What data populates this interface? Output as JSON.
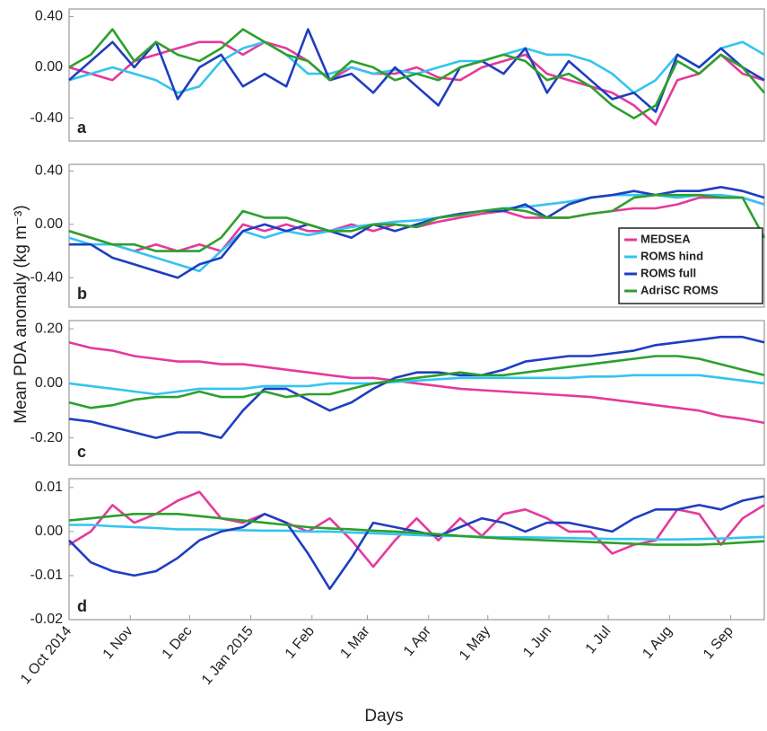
{
  "chart_data": [
    {
      "type": "line",
      "label": "a",
      "x": [
        0,
        11,
        22,
        33,
        44,
        55,
        66,
        77,
        88,
        99,
        110,
        121,
        132,
        143,
        154,
        165,
        176,
        187,
        198,
        209,
        220,
        231,
        242,
        253,
        264,
        275,
        286,
        297,
        308,
        319,
        330,
        341,
        352
      ],
      "xlim": [
        0,
        352
      ],
      "ylim": [
        -0.58,
        0.46
      ],
      "yticks": [
        {
          "value": 0.4,
          "label": "0.40"
        },
        {
          "value": 0,
          "label": "0.00"
        },
        {
          "value": -0.4,
          "label": "-0.40"
        }
      ],
      "series": [
        {
          "color": "#e6399b",
          "values": [
            0,
            -0.05,
            -0.1,
            0.05,
            0.1,
            0.15,
            0.2,
            0.2,
            0.1,
            0.2,
            0.15,
            0.05,
            -0.1,
            0,
            -0.05,
            -0.05,
            0,
            -0.08,
            -0.1,
            0,
            0.05,
            0.1,
            -0.05,
            -0.1,
            -0.15,
            -0.2,
            -0.3,
            -0.45,
            -0.1,
            -0.05,
            0.1,
            -0.05,
            -0.1
          ]
        },
        {
          "color": "#33c4f0",
          "values": [
            -0.1,
            -0.05,
            0,
            -0.05,
            -0.1,
            -0.2,
            -0.15,
            0.05,
            0.15,
            0.2,
            0.1,
            -0.05,
            -0.05,
            0,
            -0.05,
            -0.02,
            -0.05,
            0,
            0.05,
            0.05,
            0.1,
            0.15,
            0.1,
            0.1,
            0.05,
            -0.05,
            -0.2,
            -0.1,
            0.1,
            0,
            0.15,
            0.2,
            0.1
          ]
        },
        {
          "color": "#1f3ec0",
          "values": [
            -0.1,
            0.05,
            0.2,
            0,
            0.2,
            -0.25,
            0,
            0.1,
            -0.15,
            -0.05,
            -0.15,
            0.3,
            -0.1,
            -0.05,
            -0.2,
            0,
            -0.15,
            -0.3,
            0,
            0.05,
            -0.05,
            0.15,
            -0.2,
            0.05,
            -0.1,
            -0.25,
            -0.2,
            -0.35,
            0.1,
            0,
            0.15,
            0,
            -0.1
          ]
        },
        {
          "color": "#2ca02c",
          "values": [
            0,
            0.1,
            0.3,
            0.05,
            0.2,
            0.1,
            0.05,
            0.15,
            0.3,
            0.2,
            0.1,
            0.05,
            -0.1,
            0.05,
            0,
            -0.1,
            -0.05,
            -0.1,
            0,
            0.05,
            0.1,
            0.05,
            -0.1,
            -0.05,
            -0.15,
            -0.3,
            -0.4,
            -0.3,
            0.05,
            -0.05,
            0.1,
            0,
            -0.2
          ]
        }
      ]
    },
    {
      "type": "line",
      "label": "b",
      "ylabel": "Mean PDA anomaly (kg m⁻³)",
      "legend": "lower right",
      "x": [
        0,
        11,
        22,
        33,
        44,
        55,
        66,
        77,
        88,
        99,
        110,
        121,
        132,
        143,
        154,
        165,
        176,
        187,
        198,
        209,
        220,
        231,
        242,
        253,
        264,
        275,
        286,
        297,
        308,
        319,
        330,
        341,
        352
      ],
      "xlim": [
        0,
        352
      ],
      "ylim": [
        -0.62,
        0.45
      ],
      "yticks": [
        {
          "value": 0.4,
          "label": "0.40"
        },
        {
          "value": 0,
          "label": "0.00"
        },
        {
          "value": -0.4,
          "label": "-0.40"
        }
      ],
      "series": [
        {
          "name": "MEDSEA",
          "color": "#e6399b",
          "values": [
            -0.05,
            -0.1,
            -0.15,
            -0.2,
            -0.15,
            -0.2,
            -0.15,
            -0.2,
            0,
            -0.05,
            0,
            -0.05,
            -0.05,
            0,
            -0.05,
            0,
            -0.02,
            0.02,
            0.05,
            0.08,
            0.1,
            0.05,
            0.05,
            0.05,
            0.08,
            0.1,
            0.12,
            0.12,
            0.15,
            0.2,
            0.2,
            0.2,
            0.15
          ]
        },
        {
          "name": "ROMS hind",
          "color": "#33c4f0",
          "values": [
            -0.1,
            -0.15,
            -0.15,
            -0.2,
            -0.25,
            -0.3,
            -0.35,
            -0.2,
            -0.05,
            -0.1,
            -0.05,
            -0.08,
            -0.05,
            -0.02,
            0,
            0.02,
            0.03,
            0.05,
            0.07,
            0.1,
            0.12,
            0.13,
            0.15,
            0.17,
            0.2,
            0.22,
            0.22,
            0.22,
            0.2,
            0.22,
            0.22,
            0.2,
            0.15
          ]
        },
        {
          "name": "ROMS full",
          "color": "#1f3ec0",
          "values": [
            -0.15,
            -0.15,
            -0.25,
            -0.3,
            -0.35,
            -0.4,
            -0.3,
            -0.25,
            -0.05,
            0,
            -0.05,
            0,
            -0.05,
            -0.1,
            0,
            -0.05,
            0,
            0.05,
            0.08,
            0.1,
            0.1,
            0.15,
            0.05,
            0.15,
            0.2,
            0.22,
            0.25,
            0.22,
            0.25,
            0.25,
            0.28,
            0.25,
            0.2
          ]
        },
        {
          "name": "AdriSC ROMS",
          "color": "#2ca02c",
          "values": [
            -0.05,
            -0.1,
            -0.15,
            -0.15,
            -0.2,
            -0.2,
            -0.2,
            -0.1,
            0.1,
            0.05,
            0.05,
            0,
            -0.05,
            -0.05,
            0,
            0,
            -0.02,
            0.05,
            0.07,
            0.1,
            0.12,
            0.1,
            0.05,
            0.05,
            0.08,
            0.1,
            0.2,
            0.22,
            0.22,
            0.22,
            0.2,
            0.2,
            -0.1
          ]
        }
      ]
    },
    {
      "type": "line",
      "label": "c",
      "x": [
        0,
        11,
        22,
        33,
        44,
        55,
        66,
        77,
        88,
        99,
        110,
        121,
        132,
        143,
        154,
        165,
        176,
        187,
        198,
        209,
        220,
        231,
        242,
        253,
        264,
        275,
        286,
        297,
        308,
        319,
        330,
        341,
        352
      ],
      "xlim": [
        0,
        352
      ],
      "ylim": [
        -0.3,
        0.23
      ],
      "yticks": [
        {
          "value": 0.2,
          "label": "0.20"
        },
        {
          "value": 0,
          "label": "0.00"
        },
        {
          "value": -0.2,
          "label": "-0.20"
        }
      ],
      "series": [
        {
          "color": "#e6399b",
          "values": [
            0.15,
            0.13,
            0.12,
            0.1,
            0.09,
            0.08,
            0.08,
            0.07,
            0.07,
            0.06,
            0.05,
            0.04,
            0.03,
            0.02,
            0.02,
            0.01,
            0,
            -0.01,
            -0.02,
            -0.025,
            -0.03,
            -0.035,
            -0.04,
            -0.045,
            -0.05,
            -0.06,
            -0.07,
            -0.08,
            -0.09,
            -0.1,
            -0.12,
            -0.13,
            -0.145
          ]
        },
        {
          "color": "#33c4f0",
          "values": [
            0,
            -0.01,
            -0.02,
            -0.03,
            -0.04,
            -0.03,
            -0.02,
            -0.02,
            -0.02,
            -0.01,
            -0.01,
            -0.01,
            0,
            0,
            0,
            0.005,
            0.01,
            0.015,
            0.02,
            0.02,
            0.02,
            0.02,
            0.02,
            0.02,
            0.025,
            0.025,
            0.03,
            0.03,
            0.03,
            0.03,
            0.02,
            0.01,
            0
          ]
        },
        {
          "color": "#1f3ec0",
          "values": [
            -0.13,
            -0.14,
            -0.16,
            -0.18,
            -0.2,
            -0.18,
            -0.18,
            -0.2,
            -0.1,
            -0.02,
            -0.02,
            -0.06,
            -0.1,
            -0.07,
            -0.02,
            0.02,
            0.04,
            0.04,
            0.03,
            0.03,
            0.05,
            0.08,
            0.09,
            0.1,
            0.1,
            0.11,
            0.12,
            0.14,
            0.15,
            0.16,
            0.17,
            0.17,
            0.15
          ]
        },
        {
          "color": "#2ca02c",
          "values": [
            -0.07,
            -0.09,
            -0.08,
            -0.06,
            -0.05,
            -0.05,
            -0.03,
            -0.05,
            -0.05,
            -0.03,
            -0.05,
            -0.04,
            -0.04,
            -0.02,
            0,
            0.01,
            0.02,
            0.03,
            0.04,
            0.03,
            0.03,
            0.04,
            0.05,
            0.06,
            0.07,
            0.08,
            0.09,
            0.1,
            0.1,
            0.09,
            0.07,
            0.05,
            0.03
          ]
        }
      ]
    },
    {
      "type": "line",
      "label": "d",
      "xlabel": "Days",
      "x": [
        0,
        11,
        22,
        33,
        44,
        55,
        66,
        77,
        88,
        99,
        110,
        121,
        132,
        143,
        154,
        165,
        176,
        187,
        198,
        209,
        220,
        231,
        242,
        253,
        264,
        275,
        286,
        297,
        308,
        319,
        330,
        341,
        352
      ],
      "xlim": [
        0,
        352
      ],
      "ylim": [
        -0.02,
        0.012
      ],
      "xticks": [
        {
          "value": 0,
          "label": "1 Oct 2014"
        },
        {
          "value": 31,
          "label": "1 Nov"
        },
        {
          "value": 61,
          "label": "1 Dec"
        },
        {
          "value": 92,
          "label": "1 Jan 2015"
        },
        {
          "value": 123,
          "label": "1 Feb"
        },
        {
          "value": 151,
          "label": "1 Mar"
        },
        {
          "value": 182,
          "label": "1 Apr"
        },
        {
          "value": 212,
          "label": "1 May"
        },
        {
          "value": 243,
          "label": "1 Jun"
        },
        {
          "value": 273,
          "label": "1 Jul"
        },
        {
          "value": 304,
          "label": "1 Aug"
        },
        {
          "value": 335,
          "label": "1 Sep"
        }
      ],
      "yticks": [
        {
          "value": 0.01,
          "label": "0.01"
        },
        {
          "value": 0,
          "label": "0.00"
        },
        {
          "value": -0.01,
          "label": "-0.01"
        },
        {
          "value": -0.02,
          "label": "-0.02"
        }
      ],
      "series": [
        {
          "color": "#e6399b",
          "values": [
            -0.003,
            0,
            0.006,
            0.002,
            0.004,
            0.007,
            0.009,
            0.003,
            0.002,
            0.004,
            0.002,
            0,
            0.003,
            -0.002,
            -0.008,
            -0.002,
            0.003,
            -0.002,
            0.003,
            -0.001,
            0.004,
            0.005,
            0.003,
            0,
            0,
            -0.005,
            -0.003,
            -0.002,
            0.005,
            0.004,
            -0.003,
            0.003,
            0.006
          ]
        },
        {
          "color": "#33c4f0",
          "values": [
            0.0015,
            0.0015,
            0.0012,
            0.001,
            0.0008,
            0.0005,
            0.0005,
            0.0004,
            0.0003,
            0.0002,
            0.0002,
            0,
            0,
            -0.0002,
            -0.0004,
            -0.0006,
            -0.0008,
            -0.001,
            -0.001,
            -0.0012,
            -0.0013,
            -0.0013,
            -0.0014,
            -0.0015,
            -0.0016,
            -0.0017,
            -0.0017,
            -0.0018,
            -0.0018,
            -0.0017,
            -0.0016,
            -0.0014,
            -0.0012
          ]
        },
        {
          "color": "#1f3ec0",
          "values": [
            -0.002,
            -0.007,
            -0.009,
            -0.01,
            -0.009,
            -0.006,
            -0.002,
            0,
            0.001,
            0.004,
            0.002,
            -0.005,
            -0.013,
            -0.006,
            0.002,
            0.001,
            0,
            -0.001,
            0.001,
            0.003,
            0.002,
            0,
            0.002,
            0.002,
            0.001,
            0,
            0.003,
            0.005,
            0.005,
            0.006,
            0.005,
            0.007,
            0.008
          ]
        },
        {
          "color": "#2ca02c",
          "values": [
            0.0025,
            0.003,
            0.0035,
            0.004,
            0.004,
            0.004,
            0.0035,
            0.003,
            0.0025,
            0.002,
            0.0015,
            0.001,
            0.0007,
            0.0005,
            0.0002,
            0,
            -0.0003,
            -0.0006,
            -0.001,
            -0.0013,
            -0.0016,
            -0.0018,
            -0.002,
            -0.0022,
            -0.0024,
            -0.0026,
            -0.0028,
            -0.003,
            -0.003,
            -0.003,
            -0.0028,
            -0.0025,
            -0.0022
          ]
        }
      ]
    }
  ]
}
